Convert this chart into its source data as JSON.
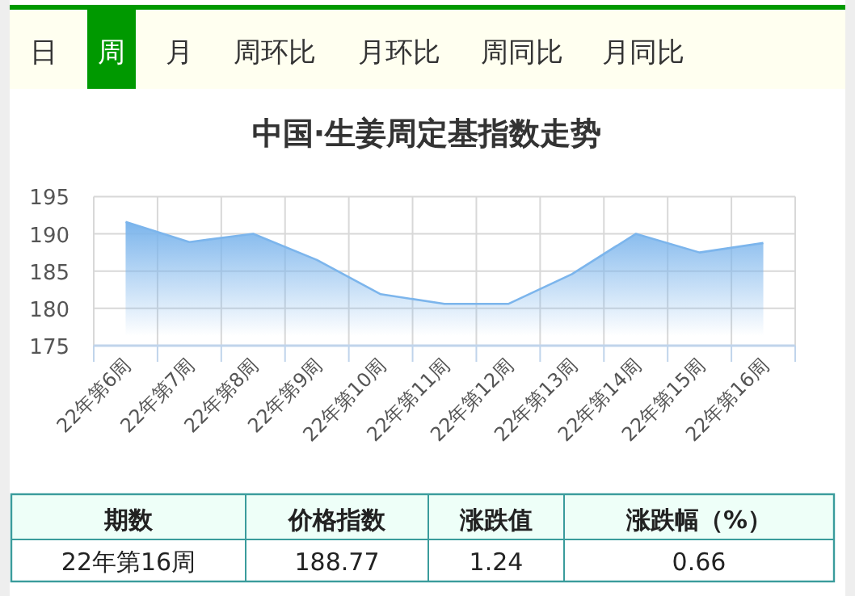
{
  "chart_data": {
    "type": "area",
    "title": "中国·生姜周定基指数走势",
    "categories": [
      "22年第6周",
      "22年第7周",
      "22年第8周",
      "22年第9周",
      "22年第10周",
      "22年第11周",
      "22年第12周",
      "22年第13周",
      "22年第14周",
      "22年第15周",
      "22年第16周"
    ],
    "series": [
      {
        "color": "#7cb5ec",
        "values": [
          191.6,
          188.9,
          190.0,
          186.5,
          181.9,
          180.6,
          180.6,
          184.6,
          190.0,
          187.5,
          188.77
        ]
      }
    ],
    "ylim": [
      175,
      195
    ],
    "yticks": [
      175,
      180,
      185,
      190,
      195
    ],
    "grid": true,
    "annotations": [
      "日",
      "周",
      "月",
      "周环比",
      "月环比",
      "周同比",
      "月同比",
      "期数",
      "价格指数",
      "涨跌值",
      "涨跌幅（%）",
      "22年第16周",
      "188.77",
      "1.24",
      "0.66"
    ]
  }
}
